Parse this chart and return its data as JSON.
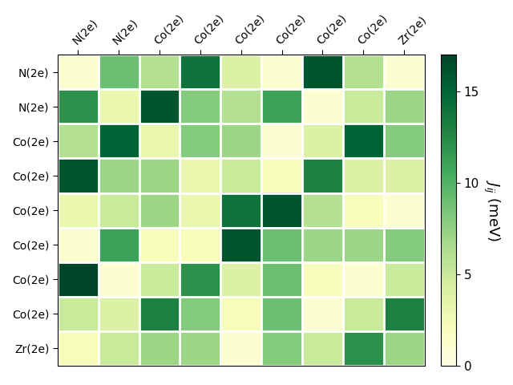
{
  "labels": [
    "N(2e)",
    "N(2e)",
    "Co(2e)",
    "Co(2e)",
    "Co(2e)",
    "Co(2e)",
    "Co(2e)",
    "Co(2e)",
    "Zr(2e)"
  ],
  "matrix": [
    [
      1.0,
      9.0,
      6.0,
      14.0,
      4.0,
      1.0,
      16.0,
      6.0,
      1.0
    ],
    [
      12.0,
      3.0,
      16.0,
      8.0,
      6.0,
      11.0,
      1.0,
      5.0,
      7.0
    ],
    [
      6.0,
      15.0,
      3.0,
      8.0,
      7.0,
      1.0,
      4.0,
      15.0,
      8.0
    ],
    [
      16.0,
      7.0,
      7.0,
      3.0,
      5.0,
      2.0,
      13.0,
      4.0,
      4.0
    ],
    [
      3.0,
      5.0,
      7.0,
      3.0,
      14.0,
      16.0,
      6.0,
      2.0,
      1.0
    ],
    [
      1.0,
      11.0,
      2.0,
      2.0,
      16.0,
      9.0,
      7.0,
      7.0,
      8.0
    ],
    [
      17.0,
      1.0,
      5.0,
      12.0,
      4.0,
      9.0,
      2.0,
      1.0,
      5.0
    ],
    [
      5.0,
      4.0,
      13.0,
      8.0,
      2.0,
      9.0,
      1.0,
      5.0,
      13.0
    ],
    [
      2.0,
      5.0,
      7.0,
      7.0,
      1.0,
      8.0,
      5.0,
      12.0,
      7.0
    ]
  ],
  "vmin": 0,
  "vmax": 17,
  "cmap": "YlGn",
  "colorbar_label": "$J_{ij}$ (meV)",
  "colorbar_ticks": [
    0,
    5,
    10,
    15
  ],
  "figsize": [
    6.4,
    4.8
  ],
  "dpi": 100
}
